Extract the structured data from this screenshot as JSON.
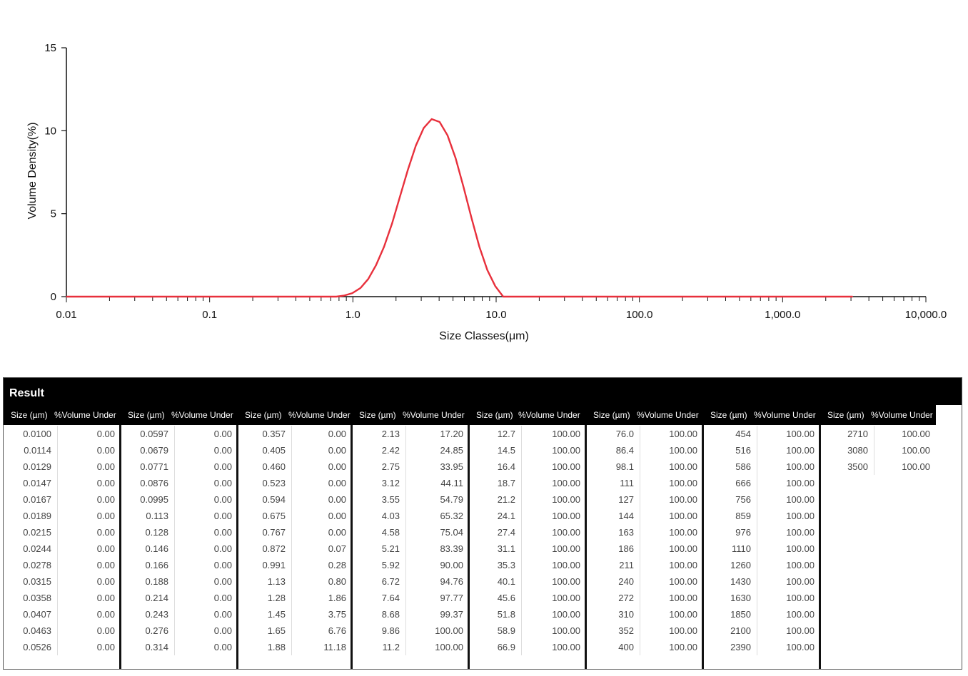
{
  "chart_data": {
    "type": "line",
    "xlabel": "Size Classes(μm)",
    "ylabel": "Volume Density(%)",
    "x_scale": "log",
    "xlim": [
      0.01,
      10000
    ],
    "ylim": [
      0,
      15
    ],
    "x_tick_labels": [
      "0.01",
      "0.1",
      "1.0",
      "10.0",
      "100.0",
      "1,000.0",
      "10,000.0"
    ],
    "x_tick_values": [
      0.01,
      0.1,
      1,
      10,
      100,
      1000,
      10000
    ],
    "y_tick_labels": [
      "0",
      "5",
      "10",
      "15"
    ],
    "y_tick_values": [
      0,
      5,
      10,
      15
    ],
    "grid": false,
    "series": [
      {
        "color": "#e8303c",
        "x": [
          0.01,
          0.0114,
          0.0129,
          0.0147,
          0.0167,
          0.0189,
          0.0215,
          0.0244,
          0.0278,
          0.0315,
          0.0358,
          0.0407,
          0.0463,
          0.0526,
          0.0597,
          0.0679,
          0.0771,
          0.0876,
          0.0995,
          0.113,
          0.128,
          0.146,
          0.166,
          0.188,
          0.214,
          0.243,
          0.276,
          0.314,
          0.357,
          0.405,
          0.46,
          0.523,
          0.594,
          0.675,
          0.767,
          0.872,
          0.991,
          1.13,
          1.28,
          1.45,
          1.65,
          1.88,
          2.13,
          2.42,
          2.75,
          3.12,
          3.55,
          4.03,
          4.58,
          5.21,
          5.92,
          6.72,
          7.64,
          8.68,
          9.86,
          11.2,
          12.7,
          14.5,
          16.4,
          18.7,
          21.2,
          24.1,
          27.4,
          31.1,
          35.3,
          40.1,
          45.6,
          51.8,
          58.9,
          66.9,
          76,
          86.4,
          98.1,
          111,
          127,
          144,
          163,
          186,
          211,
          240,
          272,
          310,
          352,
          400,
          454,
          516,
          586,
          666,
          756,
          859,
          976,
          1110,
          1260,
          1430,
          1630,
          1850,
          2100,
          2390,
          2710,
          3080
        ],
        "y": [
          0,
          0,
          0,
          0,
          0,
          0,
          0,
          0,
          0,
          0,
          0,
          0,
          0,
          0,
          0,
          0,
          0,
          0,
          0,
          0,
          0,
          0,
          0,
          0,
          0,
          0,
          0,
          0,
          0,
          0,
          0,
          0,
          0,
          0,
          0,
          0.07,
          0.21,
          0.52,
          1.06,
          1.89,
          3.01,
          4.42,
          6.02,
          7.65,
          9.1,
          10.16,
          10.7,
          10.53,
          9.72,
          8.35,
          6.61,
          4.76,
          3.01,
          1.6,
          0.63,
          0,
          0,
          0,
          0,
          0,
          0,
          0,
          0,
          0,
          0,
          0,
          0,
          0,
          0,
          0,
          0,
          0,
          0,
          0,
          0,
          0,
          0,
          0,
          0,
          0,
          0,
          0,
          0,
          0,
          0,
          0,
          0,
          0,
          0,
          0,
          0,
          0,
          0,
          0,
          0,
          0,
          0,
          0,
          0,
          0
        ]
      }
    ]
  },
  "result": {
    "title": "Result",
    "col_size_label": "Size (µm)",
    "col_under_label": "%Volume Under",
    "columns": [
      {
        "size": [
          "0.0100",
          "0.0114",
          "0.0129",
          "0.0147",
          "0.0167",
          "0.0189",
          "0.0215",
          "0.0244",
          "0.0278",
          "0.0315",
          "0.0358",
          "0.0407",
          "0.0463",
          "0.0526"
        ],
        "under": [
          "0.00",
          "0.00",
          "0.00",
          "0.00",
          "0.00",
          "0.00",
          "0.00",
          "0.00",
          "0.00",
          "0.00",
          "0.00",
          "0.00",
          "0.00",
          "0.00"
        ]
      },
      {
        "size": [
          "0.0597",
          "0.0679",
          "0.0771",
          "0.0876",
          "0.0995",
          "0.113",
          "0.128",
          "0.146",
          "0.166",
          "0.188",
          "0.214",
          "0.243",
          "0.276",
          "0.314"
        ],
        "under": [
          "0.00",
          "0.00",
          "0.00",
          "0.00",
          "0.00",
          "0.00",
          "0.00",
          "0.00",
          "0.00",
          "0.00",
          "0.00",
          "0.00",
          "0.00",
          "0.00"
        ]
      },
      {
        "size": [
          "0.357",
          "0.405",
          "0.460",
          "0.523",
          "0.594",
          "0.675",
          "0.767",
          "0.872",
          "0.991",
          "1.13",
          "1.28",
          "1.45",
          "1.65",
          "1.88"
        ],
        "under": [
          "0.00",
          "0.00",
          "0.00",
          "0.00",
          "0.00",
          "0.00",
          "0.00",
          "0.07",
          "0.28",
          "0.80",
          "1.86",
          "3.75",
          "6.76",
          "11.18"
        ]
      },
      {
        "size": [
          "2.13",
          "2.42",
          "2.75",
          "3.12",
          "3.55",
          "4.03",
          "4.58",
          "5.21",
          "5.92",
          "6.72",
          "7.64",
          "8.68",
          "9.86",
          "11.2"
        ],
        "under": [
          "17.20",
          "24.85",
          "33.95",
          "44.11",
          "54.79",
          "65.32",
          "75.04",
          "83.39",
          "90.00",
          "94.76",
          "97.77",
          "99.37",
          "100.00",
          "100.00"
        ]
      },
      {
        "size": [
          "12.7",
          "14.5",
          "16.4",
          "18.7",
          "21.2",
          "24.1",
          "27.4",
          "31.1",
          "35.3",
          "40.1",
          "45.6",
          "51.8",
          "58.9",
          "66.9"
        ],
        "under": [
          "100.00",
          "100.00",
          "100.00",
          "100.00",
          "100.00",
          "100.00",
          "100.00",
          "100.00",
          "100.00",
          "100.00",
          "100.00",
          "100.00",
          "100.00",
          "100.00"
        ]
      },
      {
        "size": [
          "76.0",
          "86.4",
          "98.1",
          "111",
          "127",
          "144",
          "163",
          "186",
          "211",
          "240",
          "272",
          "310",
          "352",
          "400"
        ],
        "under": [
          "100.00",
          "100.00",
          "100.00",
          "100.00",
          "100.00",
          "100.00",
          "100.00",
          "100.00",
          "100.00",
          "100.00",
          "100.00",
          "100.00",
          "100.00",
          "100.00"
        ]
      },
      {
        "size": [
          "454",
          "516",
          "586",
          "666",
          "756",
          "859",
          "976",
          "1110",
          "1260",
          "1430",
          "1630",
          "1850",
          "2100",
          "2390"
        ],
        "under": [
          "100.00",
          "100.00",
          "100.00",
          "100.00",
          "100.00",
          "100.00",
          "100.00",
          "100.00",
          "100.00",
          "100.00",
          "100.00",
          "100.00",
          "100.00",
          "100.00"
        ]
      },
      {
        "size": [
          "2710",
          "3080",
          "3500"
        ],
        "under": [
          "100.00",
          "100.00",
          "100.00"
        ]
      }
    ]
  }
}
